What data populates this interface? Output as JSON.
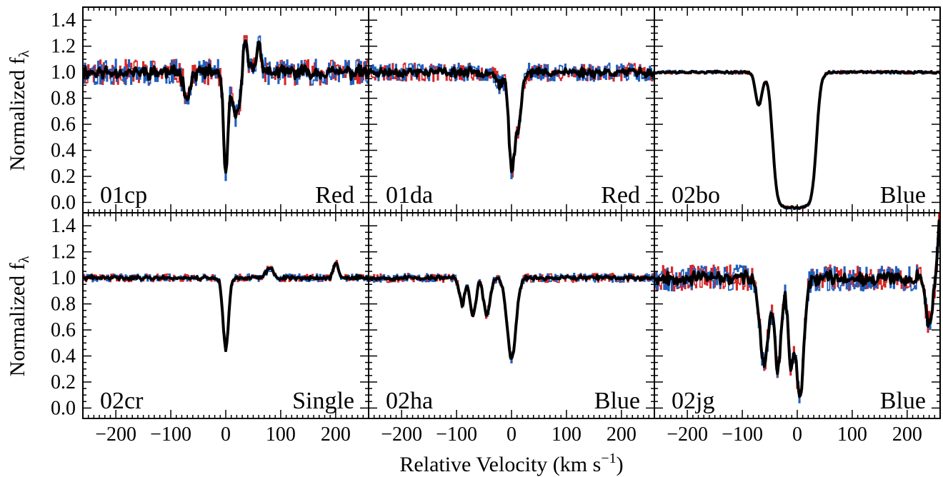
{
  "figure": {
    "ylabel": "Normalized f",
    "ylabel_sub": "λ",
    "xlabel": "Relative Velocity (km s",
    "xlabel_sup": "−1",
    "xlabel_close": ")"
  },
  "colors": {
    "red": "#d62728",
    "blue": "#1f5fbf",
    "black": "#000000"
  },
  "chart_data": [
    {
      "type": "line",
      "name": "01cp",
      "tag": "Red",
      "xlim": [
        -260,
        260
      ],
      "ylim": [
        -0.08,
        1.5
      ],
      "xticks": [
        -200,
        -100,
        0,
        100,
        200
      ],
      "yticks": [
        0.0,
        0.2,
        0.4,
        0.6,
        0.8,
        1.0,
        1.2,
        1.4
      ],
      "noise": 0.1,
      "seed": 11,
      "features": [
        [
          -70,
          0.82,
          6
        ],
        [
          0,
          0.22,
          4
        ],
        [
          15,
          0.72,
          5
        ],
        [
          25,
          0.75,
          5
        ],
        [
          35,
          1.25,
          5
        ],
        [
          60,
          1.2,
          5
        ]
      ]
    },
    {
      "type": "line",
      "name": "01da",
      "tag": "Red",
      "xlim": [
        -260,
        260
      ],
      "ylim": [
        -0.08,
        1.5
      ],
      "xticks": [
        -200,
        -100,
        0,
        100,
        200
      ],
      "yticks": [
        0.0,
        0.2,
        0.4,
        0.6,
        0.8,
        1.0,
        1.2,
        1.4
      ],
      "noise": 0.07,
      "seed": 23,
      "features": [
        [
          -20,
          0.9,
          6
        ],
        [
          0,
          0.3,
          5
        ],
        [
          12,
          0.6,
          6
        ]
      ]
    },
    {
      "type": "line",
      "name": "02bo",
      "tag": "Blue",
      "xlim": [
        -260,
        260
      ],
      "ylim": [
        -0.08,
        1.5
      ],
      "xticks": [
        -200,
        -100,
        0,
        100,
        200
      ],
      "yticks": [
        0.0,
        0.2,
        0.4,
        0.6,
        0.8,
        1.0,
        1.2,
        1.4
      ],
      "noise": 0.015,
      "seed": 37,
      "trough": [
        -45,
        35,
        -0.04
      ],
      "features": [
        [
          -70,
          0.75,
          6
        ]
      ]
    },
    {
      "type": "line",
      "name": "02cr",
      "tag": "Single",
      "xlim": [
        -260,
        260
      ],
      "ylim": [
        -0.08,
        1.5
      ],
      "xticks": [
        -200,
        -100,
        0,
        100,
        200
      ],
      "yticks": [
        0.0,
        0.2,
        0.4,
        0.6,
        0.8,
        1.0,
        1.2,
        1.4
      ],
      "noise": 0.03,
      "seed": 41,
      "features": [
        [
          0,
          0.45,
          5
        ],
        [
          80,
          1.08,
          6
        ],
        [
          200,
          1.12,
          4
        ]
      ]
    },
    {
      "type": "line",
      "name": "02ha",
      "tag": "Blue",
      "xlim": [
        -260,
        260
      ],
      "ylim": [
        -0.08,
        1.5
      ],
      "xticks": [
        -200,
        -100,
        0,
        100,
        200
      ],
      "yticks": [
        0.0,
        0.2,
        0.4,
        0.6,
        0.8,
        1.0,
        1.2,
        1.4
      ],
      "noise": 0.035,
      "seed": 53,
      "features": [
        [
          -90,
          0.8,
          5
        ],
        [
          -70,
          0.7,
          5
        ],
        [
          -45,
          0.72,
          6
        ],
        [
          0,
          0.38,
          8
        ]
      ]
    },
    {
      "type": "line",
      "name": "02jg",
      "tag": "Blue",
      "xlim": [
        -260,
        260
      ],
      "ylim": [
        -0.08,
        1.5
      ],
      "xticks": [
        -200,
        -100,
        0,
        100,
        200
      ],
      "yticks": [
        0.0,
        0.2,
        0.4,
        0.6,
        0.8,
        1.0,
        1.2,
        1.4
      ],
      "noise": 0.1,
      "seed": 67,
      "features": [
        [
          -60,
          0.35,
          8
        ],
        [
          -35,
          0.3,
          6
        ],
        [
          -12,
          0.35,
          5
        ],
        [
          5,
          0.08,
          7
        ],
        [
          240,
          0.65,
          6
        ],
        [
          258,
          1.4,
          3
        ]
      ]
    }
  ]
}
